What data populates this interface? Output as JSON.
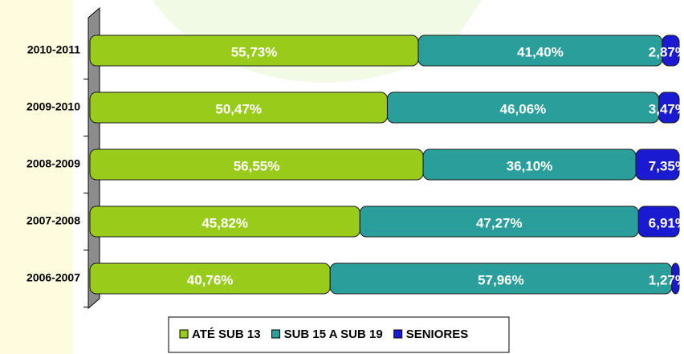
{
  "chart_data": {
    "type": "stacked-bar-horizontal",
    "categories": [
      "2010-2011",
      "2009-2010",
      "2008-2009",
      "2007-2008",
      "2006-2007"
    ],
    "series": [
      {
        "name": "ATÉ SUB 13",
        "color": "#99cc1a",
        "values": [
          55.73,
          50.47,
          56.55,
          45.82,
          40.76
        ],
        "value_labels": [
          "55,73%",
          "50,47%",
          "56,55%",
          "45,82%",
          "40,76%"
        ]
      },
      {
        "name": "SUB 15 A SUB 19",
        "color": "#2a9e9a",
        "values": [
          41.4,
          46.06,
          36.1,
          47.27,
          57.96
        ],
        "value_labels": [
          "41,40%",
          "46,06%",
          "36,10%",
          "47,27%",
          "57,96%"
        ]
      },
      {
        "name": "SENIORES",
        "color": "#1a1ad0",
        "values": [
          2.87,
          3.47,
          7.35,
          6.91,
          1.27
        ],
        "value_labels": [
          "2,87%",
          "3,47%",
          "7,35%",
          "6,91%",
          "1,27%"
        ]
      }
    ],
    "legend": "bottom"
  }
}
